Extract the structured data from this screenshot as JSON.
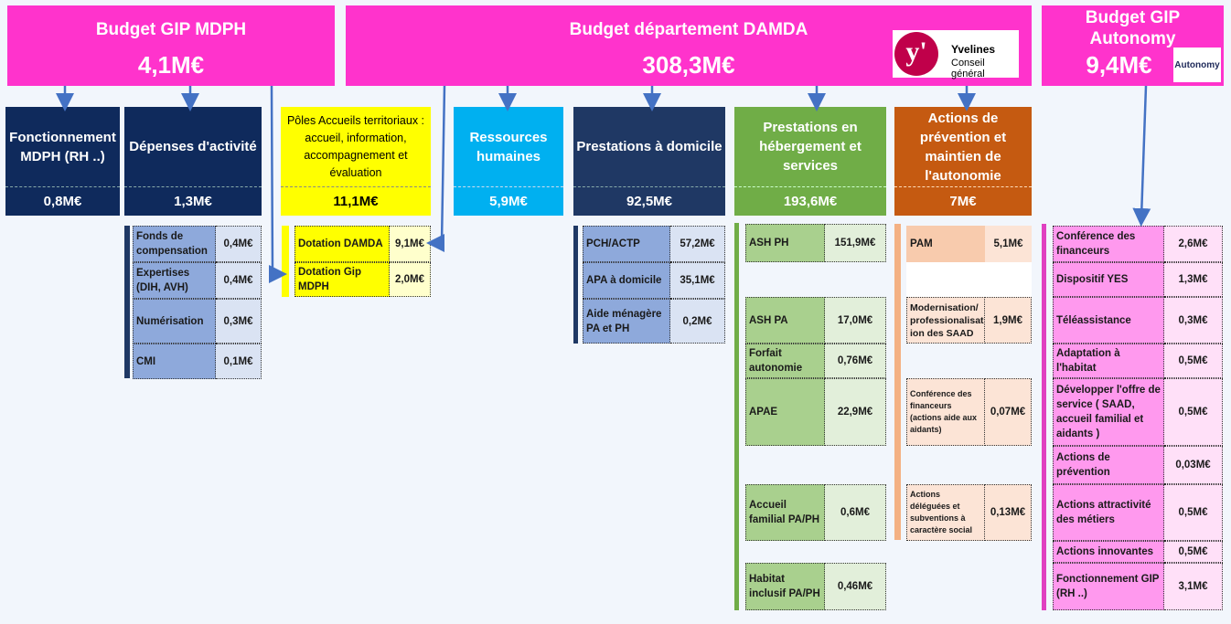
{
  "headers": {
    "gip_mdph": {
      "title": "Budget GIP MDPH",
      "amount": "4,1M€"
    },
    "damda": {
      "title": "Budget département DAMDA",
      "amount": "308,3M€"
    },
    "gip_autonomy": {
      "title": "Budget GIP Autonomy",
      "amount": "9,4M€"
    }
  },
  "logos": {
    "yvelines_name": "Yvelines",
    "yvelines_sub": "Conseil général",
    "autonomy_logo": "Autonomy"
  },
  "columns": {
    "fonctionnement": {
      "label": "Fonctionnement MDPH (RH ..)",
      "amount": "0,8M€"
    },
    "depenses": {
      "label": "Dépenses d'activité",
      "amount": "1,3M€"
    },
    "poles": {
      "label": "Pôles Accueils territoriaux : accueil, information, accompagnement et évaluation",
      "amount": "11,1M€"
    },
    "rh": {
      "label": "Ressources humaines",
      "amount": "5,9M€"
    },
    "domicile": {
      "label": "Prestations à domicile",
      "amount": "92,5M€"
    },
    "hebergement": {
      "label": "Prestations en hébergement et services",
      "amount": "193,6M€"
    },
    "prevention": {
      "label": "Actions de prévention et maintien de l'autonomie",
      "amount": "7M€"
    }
  },
  "details": {
    "depenses": [
      {
        "label": "Fonds de compensation",
        "value": "0,4M€"
      },
      {
        "label": "Expertises (DIH, AVH)",
        "value": "0,4M€"
      },
      {
        "label": "Numérisation",
        "value": "0,3M€"
      },
      {
        "label": "CMI",
        "value": "0,1M€"
      }
    ],
    "poles": [
      {
        "label": "Dotation DAMDA",
        "value": "9,1M€"
      },
      {
        "label": "Dotation Gip MDPH",
        "value": "2,0M€"
      }
    ],
    "domicile": [
      {
        "label": "PCH/ACTP",
        "value": "57,2M€"
      },
      {
        "label": "APA à domicile",
        "value": "35,1M€"
      },
      {
        "label": "Aide ménagère PA et PH",
        "value": "0,2M€"
      }
    ],
    "hebergement": [
      {
        "label": "ASH PH",
        "value": "151,9M€"
      },
      {
        "label": "ASH PA",
        "value": "17,0M€"
      },
      {
        "label": "Forfait autonomie",
        "value": "0,76M€"
      },
      {
        "label": "APAE",
        "value": "22,9M€"
      },
      {
        "label": "Accueil familial PA/PH",
        "value": "0,6M€"
      },
      {
        "label": "Habitat inclusif PA/PH",
        "value": "0,46M€"
      }
    ],
    "prevention": [
      {
        "label": "PAM",
        "value": "5,1M€"
      },
      {
        "label": "Modernisation/ professionalisat ion des SAAD",
        "value": "1,9M€"
      },
      {
        "label": "Conférence des financeurs (actions aide aux aidants)",
        "value": "0,07M€"
      },
      {
        "label": "Actions déléguées et subventions à caractère social",
        "value": "0,13M€"
      }
    ],
    "autonomy": [
      {
        "label": "Conférence des financeurs",
        "value": "2,6M€"
      },
      {
        "label": "Dispositif YES",
        "value": "1,3M€"
      },
      {
        "label": "Téléassistance",
        "value": "0,3M€"
      },
      {
        "label": "Adaptation à l'habitat",
        "value": "0,5M€"
      },
      {
        "label": "Développer l'offre de service ( SAAD, accueil familial et aidants )",
        "value": "0,5M€"
      },
      {
        "label": "Actions de prévention",
        "value": "0,03M€"
      },
      {
        "label": "Actions attractivité des métiers",
        "value": "0,5M€"
      },
      {
        "label": "Actions innovantes",
        "value": "0,5M€"
      },
      {
        "label": "Fonctionnement GIP (RH ..)",
        "value": "3,1M€"
      }
    ]
  },
  "colors": {
    "header": "#ff33cc",
    "navy": "#0f2a5c",
    "yellow": "#ffff00",
    "cyan": "#00b0f0",
    "dark_blue": "#1f3864",
    "green": "#70ad47",
    "orange": "#c55a11"
  }
}
